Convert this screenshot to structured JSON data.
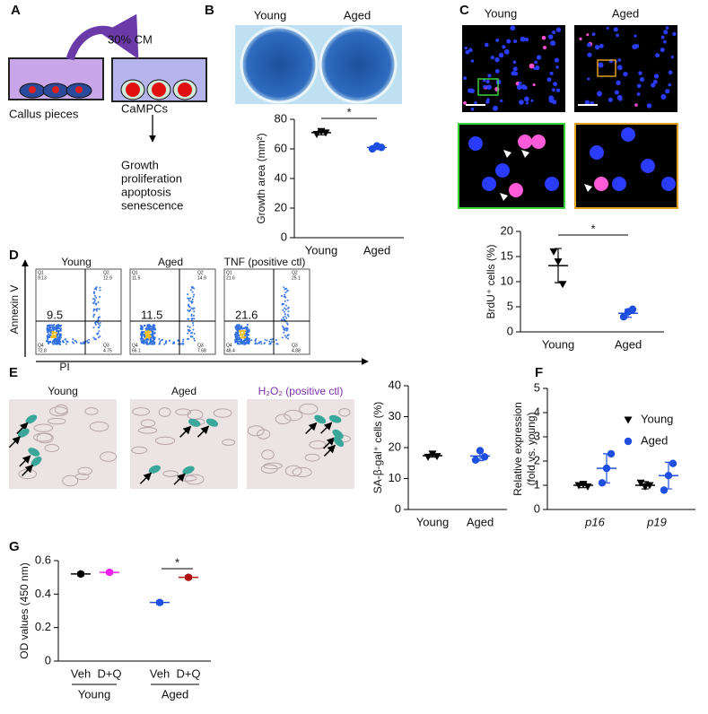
{
  "panel_labels": [
    "A",
    "B",
    "C",
    "D",
    "E",
    "F",
    "G"
  ],
  "diagram": {
    "transfer": "30% CM",
    "source": "Callus pieces",
    "target": "CaMPCs",
    "outcomes": [
      "Growth",
      "proliferation",
      "apoptosis",
      "senescence"
    ]
  },
  "well_image": {
    "labels": [
      "Young",
      "Aged"
    ]
  },
  "brdu_images": {
    "labels": [
      "Young",
      "Aged"
    ]
  },
  "flow": {
    "y_label": "Annexin V",
    "x_label": "PI",
    "plots": [
      {
        "title": "Young",
        "value": 9.5,
        "quadrants": [
          {
            "name": "Q1",
            "value": 9.13
          },
          {
            "name": "Q2",
            "value": 12.9
          },
          {
            "name": "Q4",
            "value": 72.8
          },
          {
            "name": "Q3",
            "value": 4.75
          }
        ]
      },
      {
        "title": "Aged",
        "value": 11.5,
        "quadrants": [
          {
            "name": "Q1",
            "value": 11.5
          },
          {
            "name": "Q2",
            "value": 14.9
          },
          {
            "name": "Q4",
            "value": 66.1
          },
          {
            "name": "Q3",
            "value": 7.68
          }
        ]
      },
      {
        "title": "TNF (positive ctl)",
        "value": 21.6,
        "quadrants": [
          {
            "name": "Q1",
            "value": 21.6
          },
          {
            "name": "Q2",
            "value": 25.1
          },
          {
            "name": "Q4",
            "value": 48.4
          },
          {
            "name": "Q3",
            "value": 4.88
          }
        ]
      }
    ]
  },
  "stain_images": {
    "titles": [
      "Young",
      "Aged",
      "H₂O₂ (positive ctl)"
    ]
  },
  "chart_data": [
    {
      "type": "dot",
      "y_label": "Growth area (mm²)",
      "categories": [
        "Young",
        "Aged"
      ],
      "values": [
        71,
        61
      ],
      "sd": [
        1.5,
        1.5
      ],
      "points": [
        [
          70,
          72,
          71
        ],
        [
          60,
          62,
          61
        ]
      ],
      "colors": [
        "#000000",
        "#1f4fe0"
      ],
      "markers": [
        "triangle",
        "circle"
      ],
      "ylim": [
        0,
        80
      ],
      "yticks": [
        0,
        20,
        40,
        60,
        80
      ],
      "annotation": "*"
    },
    {
      "type": "dot",
      "y_label": "BrdU⁺ cells (%)",
      "categories": [
        "Young",
        "Aged"
      ],
      "values": [
        13.2,
        3.7
      ],
      "sd": [
        3.4,
        0.8
      ],
      "points": [
        [
          16,
          14,
          9.5
        ],
        [
          3,
          4,
          4.5
        ]
      ],
      "colors": [
        "#000000",
        "#1f4fe0"
      ],
      "markers": [
        "triangle",
        "circle"
      ],
      "ylim": [
        0,
        20
      ],
      "yticks": [
        0,
        5,
        10,
        15,
        20
      ],
      "annotation": "*"
    },
    {
      "type": "dot",
      "y_label": "SA-β-gal⁺ cells (%)",
      "categories": [
        "Young",
        "Aged"
      ],
      "values": [
        17.4,
        17.3
      ],
      "sd": [
        0.5,
        1.5
      ],
      "points": [
        [
          17,
          18,
          17.2
        ],
        [
          16,
          19,
          17
        ]
      ],
      "colors": [
        "#000000",
        "#1f4fe0"
      ],
      "markers": [
        "triangle",
        "circle"
      ],
      "ylim": [
        0,
        40
      ],
      "yticks": [
        0,
        10,
        20,
        30,
        40
      ]
    },
    {
      "type": "dot",
      "y_label": [
        "Relative expression",
        "(fold vs. young)"
      ],
      "categories": [
        "p16",
        "p19"
      ],
      "series": [
        {
          "name": "Young",
          "color": "#000000",
          "marker": "triangle",
          "values": [
            1.0,
            1.0
          ],
          "sd": [
            0.1,
            0.15
          ],
          "points": [
            [
              1.0,
              1.05,
              0.95
            ],
            [
              1.1,
              0.95,
              1.0
            ]
          ]
        },
        {
          "name": "Aged",
          "color": "#1f4fe0",
          "marker": "circle",
          "values": [
            1.7,
            1.4
          ],
          "sd": [
            0.6,
            0.55
          ],
          "points": [
            [
              1.1,
              1.7,
              2.3
            ],
            [
              0.8,
              1.4,
              1.9
            ]
          ]
        }
      ],
      "ylim": [
        0,
        5
      ],
      "yticks": [
        0,
        1,
        2,
        3,
        4,
        5
      ],
      "legend": "upper right"
    },
    {
      "type": "dot",
      "y_label": "OD values (450 nm)",
      "categories": [
        "Veh",
        "D+Q",
        "Veh",
        "D+Q"
      ],
      "groups": [
        "Young",
        "Aged"
      ],
      "values": [
        0.52,
        0.53,
        0.35,
        0.5
      ],
      "sd": [
        0.01,
        0.01,
        0.01,
        0.01
      ],
      "colors": [
        "#000000",
        "#f020f0",
        "#1f4fe0",
        "#b01010"
      ],
      "markers": [
        "circle",
        "circle",
        "circle",
        "circle"
      ],
      "ylim": [
        0,
        0.6
      ],
      "yticks": [
        0,
        0.2,
        0.4,
        0.6
      ],
      "annotation": "*"
    }
  ]
}
